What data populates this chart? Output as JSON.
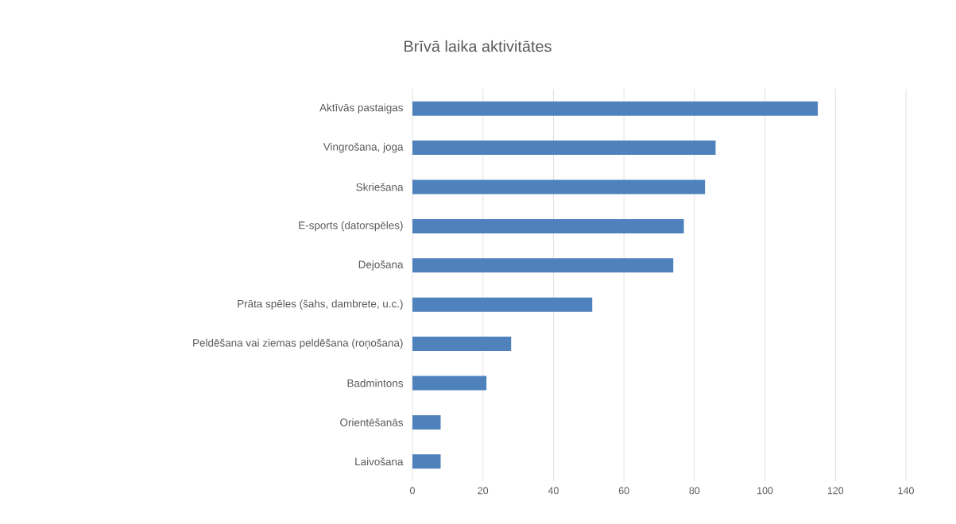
{
  "chart_data": {
    "type": "bar",
    "orientation": "horizontal",
    "title": "Brīvā laika aktivitātes",
    "categories": [
      "Aktīvās pastaigas",
      "Vingrošana, joga",
      "Skriešana",
      "E-sports (datorspēles)",
      "Dejošana",
      "Prāta spēles (šahs, dambrete, u.c.)",
      "Peldēšana vai ziemas peldēšana (roņošana)",
      "Badmintons",
      "Orientēšanās",
      "Laivošana"
    ],
    "values": [
      115,
      86,
      83,
      77,
      74,
      51,
      28,
      21,
      8,
      8
    ],
    "color": "#4f81bd",
    "xlim": [
      0,
      140
    ],
    "xticks": [
      0,
      20,
      40,
      60,
      80,
      100,
      120,
      140
    ],
    "grid": "x"
  }
}
